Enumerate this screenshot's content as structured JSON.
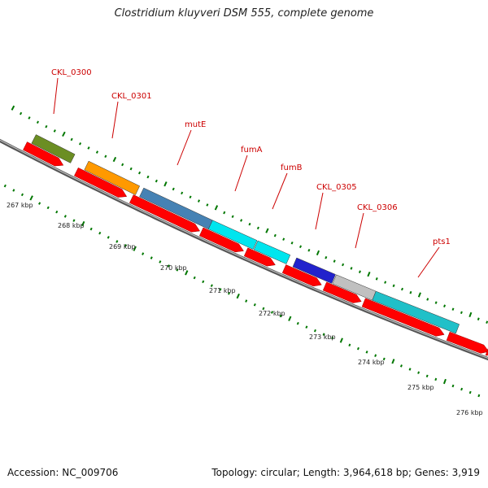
{
  "title": "Clostridium kluyveri DSM 555, complete genome",
  "footer": {
    "accession": "Accession: NC_009706",
    "stats": "Topology: circular; Length: 3,964,618 bp; Genes: 3,919"
  },
  "colors": {
    "background": "#ffffff",
    "backbone": "#888888",
    "cds": "#ff0000",
    "label": "#cc0000",
    "tick": "#007700"
  },
  "kbp_labels": [
    "267 kbp",
    "268 kbp",
    "269 kbp",
    "270 kbp",
    "271 kbp",
    "272 kbp",
    "273 kbp",
    "274 kbp",
    "275 kbp",
    "276 kbp"
  ],
  "genes": [
    {
      "name": "CKL_0300",
      "color": "#6b8e23"
    },
    {
      "name": "CKL_0301",
      "color": "#ff9900"
    },
    {
      "name": "mutE",
      "color": "#4682b4"
    },
    {
      "name": "fumA",
      "color": "#00e5ee"
    },
    {
      "name": "fumB",
      "color": "#00e5ee"
    },
    {
      "name": "CKL_0305",
      "color": "#2222cc"
    },
    {
      "name": "CKL_0306",
      "color": "#c0c0c0"
    },
    {
      "name": "pts1",
      "color": "#20c0c8"
    }
  ]
}
